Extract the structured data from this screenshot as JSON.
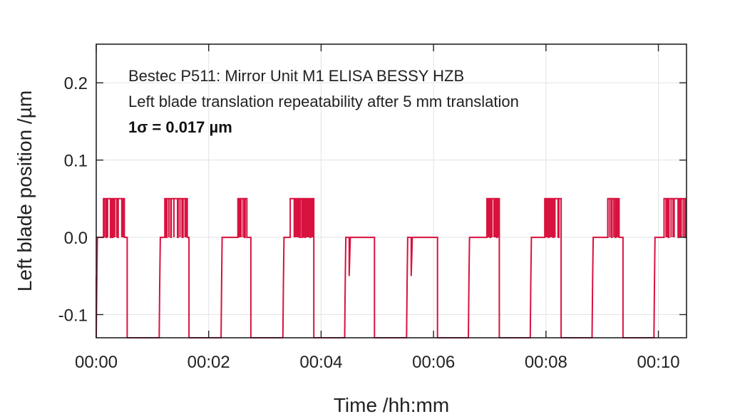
{
  "chart_data": {
    "type": "line",
    "xlabel": "Time /hh:mm",
    "ylabel": "Left blade position /µm",
    "xlim": [
      0,
      10.5
    ],
    "ylim": [
      -0.13,
      0.25
    ],
    "x_ticks": [
      0,
      2,
      4,
      6,
      8,
      10
    ],
    "x_tick_labels": [
      "00:00",
      "00:02",
      "00:04",
      "00:06",
      "00:08",
      "00:10"
    ],
    "y_ticks": [
      0.2,
      0.1,
      0.0,
      -0.1
    ],
    "y_tick_labels": [
      "0.2",
      "0.1",
      "0.0",
      "-0.1"
    ],
    "grid": true,
    "series_color": "#d8123f",
    "annotations": [
      "Bestec P511: Mirror Unit M1 ELISA BESSY HZB",
      "Left blade translation repeatability after 5 mm translation",
      "1σ = 0.017 µm"
    ],
    "cycles": [
      {
        "start": 0.0,
        "end": 0.55,
        "high_start": 0.13,
        "high_end": 0.5
      },
      {
        "start": 1.12,
        "end": 1.65,
        "high_start": 1.22,
        "high_end": 1.62
      },
      {
        "start": 2.22,
        "end": 2.75,
        "high_start": 2.52,
        "high_end": 2.68
      },
      {
        "start": 3.32,
        "end": 3.87,
        "high_start": 3.45,
        "high_end": 3.87
      },
      {
        "start": 4.42,
        "end": 4.95,
        "high_start": null,
        "high_end": null
      },
      {
        "start": 5.52,
        "end": 6.07,
        "high_start": null,
        "high_end": null
      },
      {
        "start": 6.62,
        "end": 7.17,
        "high_start": 6.95,
        "high_end": 7.17
      },
      {
        "start": 7.72,
        "end": 8.27,
        "high_start": 7.98,
        "high_end": 8.27
      },
      {
        "start": 8.82,
        "end": 9.37,
        "high_start": 9.1,
        "high_end": 9.3
      },
      {
        "start": 9.92,
        "end": 10.5,
        "high_start": 10.1,
        "high_end": 10.5
      }
    ],
    "high_level": 0.05,
    "base_level": 0.0,
    "low_level": -0.13
  }
}
